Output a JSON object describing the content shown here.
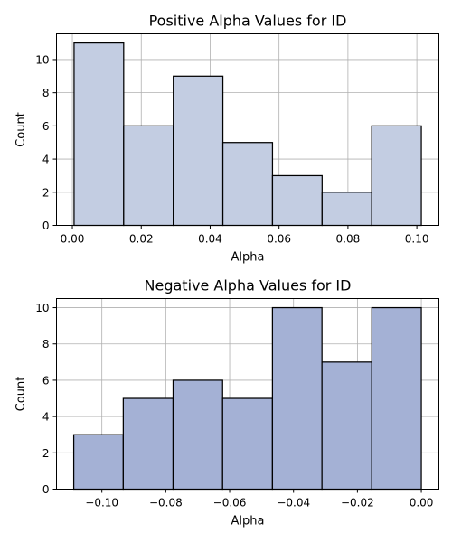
{
  "chart_data": [
    {
      "type": "bar",
      "title": "Positive Alpha Values for ID",
      "xlabel": "Alpha",
      "ylabel": "Count",
      "bin_edges": [
        0.0005,
        0.0149,
        0.0293,
        0.0437,
        0.0581,
        0.0725,
        0.0869,
        0.1013
      ],
      "values": [
        11,
        6,
        9,
        5,
        3,
        2,
        6
      ],
      "xlim": [
        -0.0046,
        0.1064
      ],
      "ylim": [
        0,
        11.55
      ],
      "xticks": [
        0.0,
        0.02,
        0.04,
        0.06,
        0.08,
        0.1
      ],
      "xtick_labels": [
        "0.00",
        "0.02",
        "0.04",
        "0.06",
        "0.08",
        "0.10"
      ],
      "yticks": [
        0,
        2,
        4,
        6,
        8,
        10
      ],
      "ytick_labels": [
        "0",
        "2",
        "4",
        "6",
        "8",
        "10"
      ],
      "color": "#c3cde2",
      "grid": true
    },
    {
      "type": "bar",
      "title": "Negative Alpha Values for ID",
      "xlabel": "Alpha",
      "ylabel": "Count",
      "bin_edges": [
        -0.1088,
        -0.0933,
        -0.0777,
        -0.0622,
        -0.0466,
        -0.0311,
        -0.0155,
        0.0
      ],
      "values": [
        3,
        5,
        6,
        5,
        10,
        7,
        10
      ],
      "xlim": [
        -0.1142,
        0.0055
      ],
      "ylim": [
        0,
        10.5
      ],
      "xticks": [
        -0.1,
        -0.08,
        -0.06,
        -0.04,
        -0.02,
        0.0
      ],
      "xtick_labels": [
        "−0.10",
        "−0.08",
        "−0.06",
        "−0.04",
        "−0.02",
        "0.00"
      ],
      "yticks": [
        0,
        2,
        4,
        6,
        8,
        10
      ],
      "ytick_labels": [
        "0",
        "2",
        "4",
        "6",
        "8",
        "10"
      ],
      "color": "#a4b1d5",
      "grid": true
    }
  ]
}
